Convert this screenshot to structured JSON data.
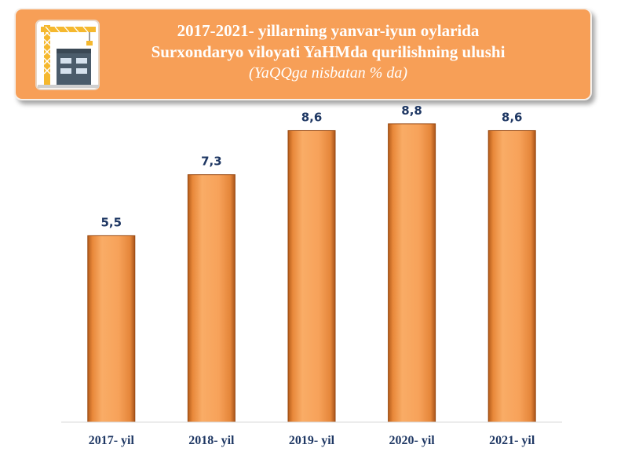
{
  "header": {
    "title_line1": "2017-2021- yillarning yanvar-iyun oylarida",
    "title_line2": "Surxondaryo viloyati YaHMda qurilishning ulushi",
    "subtitle": "(YaQQga nisbatan % da)",
    "icon": "construction-crane-icon"
  },
  "colors": {
    "banner": "#f79f57",
    "bar": "#f7a25a",
    "bar_edge": "#9a4a12",
    "label": "#1f3864"
  },
  "chart_data": {
    "type": "bar",
    "title": "2017-2021- yillarning yanvar-iyun oylarida Surxondaryo viloyati YaHMda qurilishning ulushi",
    "subtitle": "(YaQQga nisbatan % da)",
    "categories": [
      "2017- yil",
      "2018- yil",
      "2019- yil",
      "2020- yil",
      "2021- yil"
    ],
    "values": [
      5.5,
      7.3,
      8.6,
      8.8,
      8.6
    ],
    "value_labels": [
      "5,5",
      "7,3",
      "8,6",
      "8,8",
      "8,6"
    ],
    "xlabel": "",
    "ylabel": "",
    "ylim": [
      0,
      10
    ],
    "grid": false,
    "legend": "none"
  }
}
